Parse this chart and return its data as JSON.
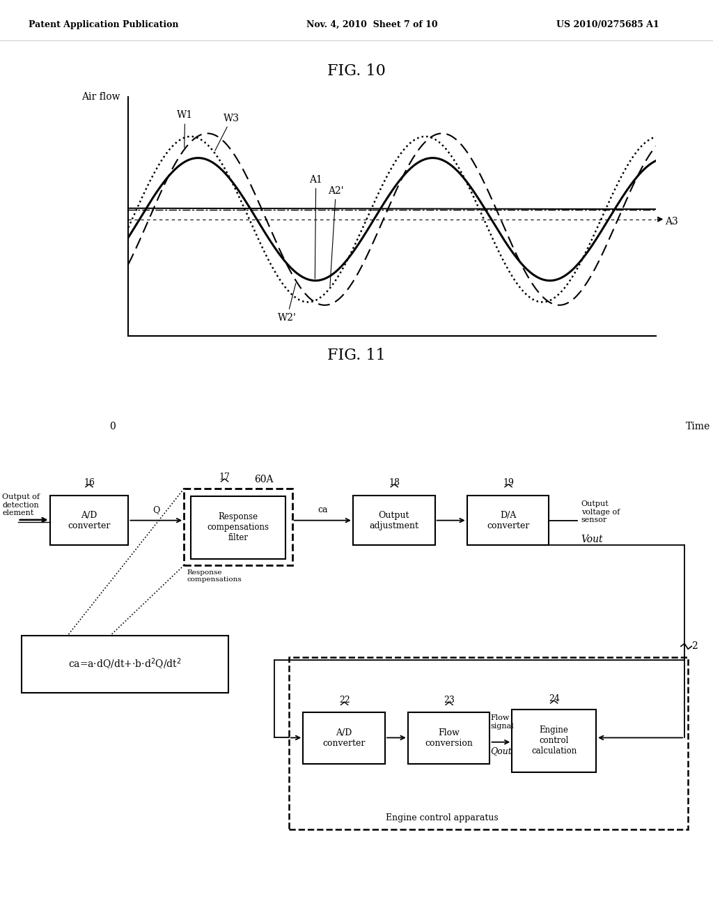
{
  "title_header_left": "Patent Application Publication",
  "title_header_mid": "Nov. 4, 2010  Sheet 7 of 10",
  "title_header_right": "US 2010/0275685 A1",
  "fig10_title": "FIG. 10",
  "fig11_title": "FIG. 11",
  "fig10_ylabel": "Air flow",
  "fig10_xlabel": "Time",
  "fig10_zero_label": "0",
  "bg_color": "#ffffff",
  "line_color": "#000000"
}
